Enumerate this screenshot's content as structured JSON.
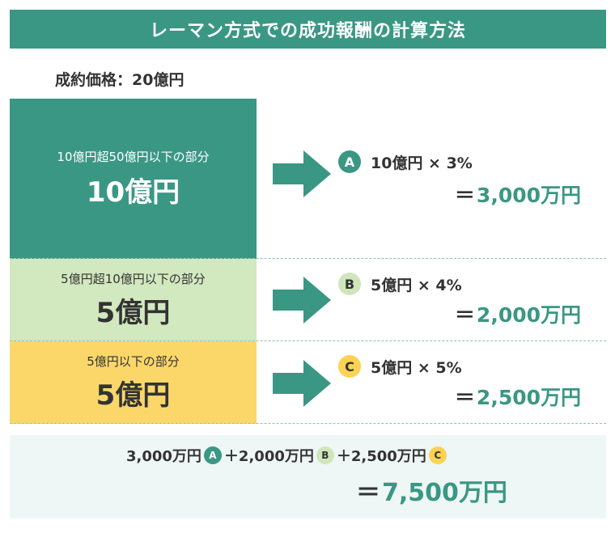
{
  "title": "レーマン方式での成功報酬の計算方法",
  "contract_price": "成約価格：20億円",
  "tiers": [
    {
      "range": "10億円超50億円以下の部分",
      "amount": "10億円",
      "badge": "A",
      "formula": "10億円 × 3%",
      "result": "3,000万円",
      "color": "#3a9784"
    },
    {
      "range": "5億円超10億円以下の部分",
      "amount": "5億円",
      "badge": "B",
      "formula": "5億円 × 4%",
      "result": "2,000万円",
      "color": "#d2e8bf"
    },
    {
      "range": "5億円以下の部分",
      "amount": "5億円",
      "badge": "C",
      "formula": "5億円 × 5%",
      "result": "2,500万円",
      "color": "#fbd76a"
    }
  ],
  "equals": "＝",
  "total": {
    "part_a": "3,000万円",
    "plus1": "＋2,000万円",
    "plus2": "＋2,500万円",
    "result": "7,500万円"
  },
  "colors": {
    "accent": "#3a9784",
    "total_bg": "#eef7f5"
  },
  "icons": {
    "arrow": "right-arrow-icon"
  }
}
